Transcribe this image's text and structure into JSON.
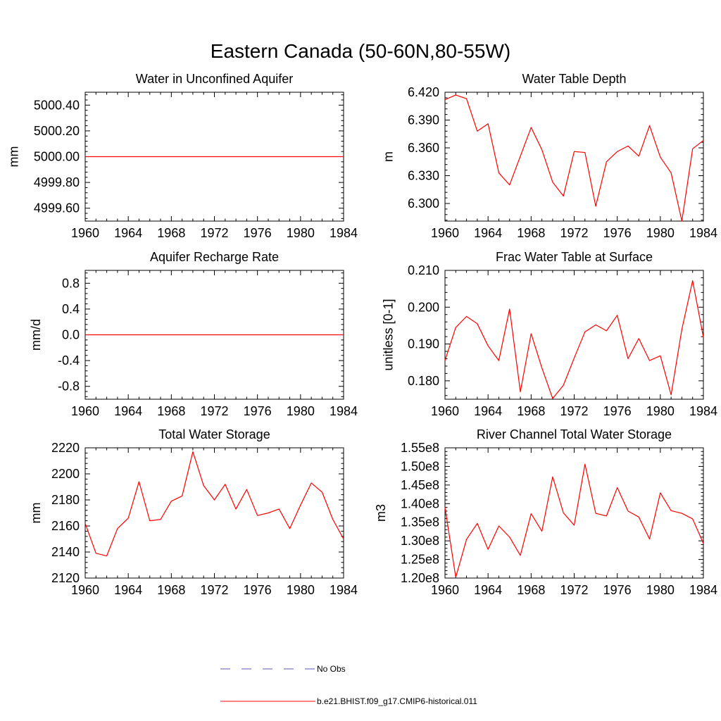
{
  "figure": {
    "title": "Eastern Canada (50-60N,80-55W)"
  },
  "legend": {
    "entries": [
      {
        "label": "No Obs",
        "color": "#5a5ab4",
        "dash": "dashed"
      },
      {
        "label": "b.e21.BHIST.f09_g17.CMIP6-historical.011",
        "color": "#ff0000",
        "dash": "solid"
      }
    ]
  },
  "chart_data": [
    {
      "type": "line",
      "title": "Water in Unconfined Aquifer",
      "ylabel": "mm",
      "xlim": [
        1960,
        1984
      ],
      "ylim": [
        4999.5,
        5000.5
      ],
      "xticks": [
        "1960",
        "1964",
        "1968",
        "1972",
        "1976",
        "1980",
        "1984"
      ],
      "yticks": [
        {
          "value": 4999.6,
          "label": "4999.60"
        },
        {
          "value": 4999.8,
          "label": "4999.80"
        },
        {
          "value": 5000.0,
          "label": "5000.00"
        },
        {
          "value": 5000.2,
          "label": "5000.20"
        },
        {
          "value": 5000.4,
          "label": "5000.40"
        }
      ],
      "series": [
        {
          "color": "#ff0000",
          "x": [
            1960,
            1961,
            1962,
            1963,
            1964,
            1965,
            1966,
            1967,
            1968,
            1969,
            1970,
            1971,
            1972,
            1973,
            1974,
            1975,
            1976,
            1977,
            1978,
            1979,
            1980,
            1981,
            1982,
            1983,
            1984
          ],
          "y": [
            5000,
            5000,
            5000,
            5000,
            5000,
            5000,
            5000,
            5000,
            5000,
            5000,
            5000,
            5000,
            5000,
            5000,
            5000,
            5000,
            5000,
            5000,
            5000,
            5000,
            5000,
            5000,
            5000,
            5000,
            5000
          ]
        }
      ]
    },
    {
      "type": "line",
      "title": "Water Table Depth",
      "ylabel": "m",
      "xlim": [
        1960,
        1984
      ],
      "ylim": [
        6.281,
        6.42
      ],
      "xticks": [
        "1960",
        "1964",
        "1968",
        "1972",
        "1976",
        "1980",
        "1984"
      ],
      "yticks": [
        {
          "value": 6.3,
          "label": "6.300"
        },
        {
          "value": 6.33,
          "label": "6.330"
        },
        {
          "value": 6.36,
          "label": "6.360"
        },
        {
          "value": 6.39,
          "label": "6.390"
        },
        {
          "value": 6.42,
          "label": "6.420"
        }
      ],
      "series": [
        {
          "color": "#ff0000",
          "x": [
            1960,
            1961,
            1962,
            1963,
            1964,
            1965,
            1966,
            1967,
            1968,
            1969,
            1970,
            1971,
            1972,
            1973,
            1974,
            1975,
            1976,
            1977,
            1978,
            1979,
            1980,
            1981,
            1982,
            1983,
            1984
          ],
          "y": [
            6.412,
            6.417,
            6.413,
            6.378,
            6.386,
            6.333,
            6.32,
            6.351,
            6.382,
            6.358,
            6.323,
            6.308,
            6.356,
            6.355,
            6.297,
            6.345,
            6.356,
            6.362,
            6.351,
            6.384,
            6.35,
            6.333,
            6.281,
            6.359,
            6.368
          ]
        }
      ]
    },
    {
      "type": "line",
      "title": "Aquifer Recharge Rate",
      "ylabel": "mm/d",
      "xlim": [
        1960,
        1984
      ],
      "ylim": [
        -1.0,
        1.0
      ],
      "xticks": [
        "1960",
        "1964",
        "1968",
        "1972",
        "1976",
        "1980",
        "1984"
      ],
      "yticks": [
        {
          "value": -0.8,
          "label": "-0.8"
        },
        {
          "value": -0.4,
          "label": "-0.4"
        },
        {
          "value": 0.0,
          "label": "0.0"
        },
        {
          "value": 0.4,
          "label": "0.4"
        },
        {
          "value": 0.8,
          "label": "0.8"
        }
      ],
      "series": [
        {
          "color": "#ff0000",
          "x": [
            1960,
            1961,
            1962,
            1963,
            1964,
            1965,
            1966,
            1967,
            1968,
            1969,
            1970,
            1971,
            1972,
            1973,
            1974,
            1975,
            1976,
            1977,
            1978,
            1979,
            1980,
            1981,
            1982,
            1983,
            1984
          ],
          "y": [
            0,
            0,
            0,
            0,
            0,
            0,
            0,
            0,
            0,
            0,
            0,
            0,
            0,
            0,
            0,
            0,
            0,
            0,
            0,
            0,
            0,
            0,
            0,
            0,
            0
          ]
        }
      ]
    },
    {
      "type": "line",
      "title": "Frac Water Table at Surface",
      "ylabel": "unitless [0-1]",
      "xlim": [
        1960,
        1984
      ],
      "ylim": [
        0.175,
        0.21
      ],
      "xticks": [
        "1960",
        "1964",
        "1968",
        "1972",
        "1976",
        "1980",
        "1984"
      ],
      "yticks": [
        {
          "value": 0.18,
          "label": "0.180"
        },
        {
          "value": 0.19,
          "label": "0.190"
        },
        {
          "value": 0.2,
          "label": "0.200"
        },
        {
          "value": 0.21,
          "label": "0.210"
        }
      ],
      "series": [
        {
          "color": "#ff0000",
          "x": [
            1960,
            1961,
            1962,
            1963,
            1964,
            1965,
            1966,
            1967,
            1968,
            1969,
            1970,
            1971,
            1972,
            1973,
            1974,
            1975,
            1976,
            1977,
            1978,
            1979,
            1980,
            1981,
            1982,
            1983,
            1984
          ],
          "y": [
            0.1855,
            0.1945,
            0.1975,
            0.1955,
            0.1895,
            0.1855,
            0.1995,
            0.177,
            0.1928,
            0.1835,
            0.1752,
            0.1788,
            0.1862,
            0.1933,
            0.1952,
            0.1936,
            0.1978,
            0.186,
            0.1915,
            0.1855,
            0.1868,
            0.1762,
            0.194,
            0.2072,
            0.1918
          ]
        }
      ]
    },
    {
      "type": "line",
      "title": "Total Water Storage",
      "ylabel": "mm",
      "xlim": [
        1960,
        1984
      ],
      "ylim": [
        2120,
        2220
      ],
      "xticks": [
        "1960",
        "1964",
        "1968",
        "1972",
        "1976",
        "1980",
        "1984"
      ],
      "yticks": [
        {
          "value": 2120,
          "label": "2120"
        },
        {
          "value": 2140,
          "label": "2140"
        },
        {
          "value": 2160,
          "label": "2160"
        },
        {
          "value": 2180,
          "label": "2180"
        },
        {
          "value": 2200,
          "label": "2200"
        },
        {
          "value": 2220,
          "label": "2220"
        }
      ],
      "series": [
        {
          "color": "#ff0000",
          "x": [
            1960,
            1961,
            1962,
            1963,
            1964,
            1965,
            1966,
            1967,
            1968,
            1969,
            1970,
            1971,
            1972,
            1973,
            1974,
            1975,
            1976,
            1977,
            1978,
            1979,
            1980,
            1981,
            1982,
            1983,
            1984
          ],
          "y": [
            2162,
            2139,
            2137,
            2158,
            2166,
            2194,
            2164,
            2165,
            2179,
            2183,
            2217,
            2191,
            2180,
            2192,
            2173,
            2188,
            2168,
            2170,
            2173,
            2158,
            2176,
            2193,
            2186,
            2165,
            2150
          ]
        }
      ]
    },
    {
      "type": "line",
      "title": "River Channel Total Water Storage",
      "ylabel": "m3",
      "xlim": [
        1960,
        1984
      ],
      "ylim": [
        120000000,
        155000000
      ],
      "xticks": [
        "1960",
        "1964",
        "1968",
        "1972",
        "1976",
        "1980",
        "1984"
      ],
      "yticks": [
        {
          "value": 120000000,
          "label": "1.20e8"
        },
        {
          "value": 125000000,
          "label": "1.25e8"
        },
        {
          "value": 130000000,
          "label": "1.30e8"
        },
        {
          "value": 135000000,
          "label": "1.35e8"
        },
        {
          "value": 140000000,
          "label": "1.40e8"
        },
        {
          "value": 145000000,
          "label": "1.45e8"
        },
        {
          "value": 150000000,
          "label": "1.50e8"
        },
        {
          "value": 155000000,
          "label": "1.55e8"
        }
      ],
      "series": [
        {
          "color": "#ff0000",
          "x": [
            1960,
            1961,
            1962,
            1963,
            1964,
            1965,
            1966,
            1967,
            1968,
            1969,
            1970,
            1971,
            1972,
            1973,
            1974,
            1975,
            1976,
            1977,
            1978,
            1979,
            1980,
            1981,
            1982,
            1983,
            1984
          ],
          "y": [
            139000000,
            120200000,
            130400000,
            134700000,
            127700000,
            134000000,
            131000000,
            126100000,
            137300000,
            132600000,
            147200000,
            137500000,
            134200000,
            150600000,
            137400000,
            136700000,
            144300000,
            138000000,
            136400000,
            130500000,
            142900000,
            138100000,
            137400000,
            135900000,
            129300000
          ]
        }
      ]
    }
  ]
}
